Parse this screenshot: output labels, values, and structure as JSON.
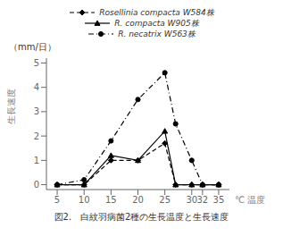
{
  "chart_data": {
    "type": "line",
    "caption": "図2.　白紋羽病菌2種の生長温度と生長速度",
    "x_label": "℃  温度",
    "y_label": "生長速度",
    "annotations": [
      "（mm/日）"
    ],
    "x": [
      5,
      10,
      15,
      20,
      25,
      27,
      30,
      32,
      35
    ],
    "xlim": [
      3,
      37
    ],
    "xticks": [
      5,
      10,
      15,
      20,
      25,
      30,
      32,
      35
    ],
    "ylim": [
      -0.2,
      5.2
    ],
    "yticks": [
      0,
      1,
      2,
      3,
      4,
      5
    ],
    "grid": false,
    "legend": "top",
    "series": [
      {
        "name": "Rosellinia compacta W584株",
        "color": "#000000",
        "marker": "diamond",
        "line_style": "dashed",
        "values": [
          0,
          0,
          1.0,
          1.0,
          1.7,
          0,
          0,
          0,
          0
        ]
      },
      {
        "name": "R. compacta W905株",
        "color": "#000000",
        "marker": "triangle",
        "line_style": "solid",
        "values": [
          0,
          0,
          1.2,
          1.0,
          2.2,
          0,
          0,
          0,
          0
        ]
      },
      {
        "name": "R. necatrix W563株",
        "color": "#000000",
        "marker": "circle",
        "line_style": "dashdot",
        "values": [
          0,
          0.2,
          1.8,
          3.5,
          4.6,
          2.5,
          1.0,
          0,
          0
        ]
      }
    ]
  }
}
